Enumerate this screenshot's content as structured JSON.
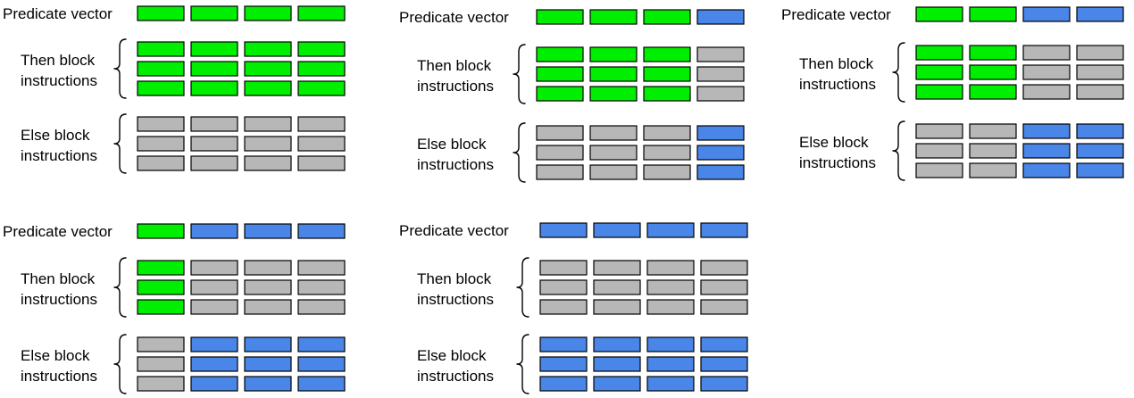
{
  "labels": {
    "predicate": "Predicate vector",
    "then_line1": "Then block",
    "then_line2": "instructions",
    "else_line1": "Else block",
    "else_line2": "instructions"
  },
  "colors": {
    "true": "#00ee00",
    "false": "#4a86e8",
    "inactive": "#b7b7b7"
  },
  "panels": [
    {
      "predicate": [
        1,
        1,
        1,
        1
      ]
    },
    {
      "predicate": [
        1,
        1,
        1,
        0
      ]
    },
    {
      "predicate": [
        1,
        1,
        0,
        0
      ]
    },
    {
      "predicate": [
        1,
        0,
        0,
        0
      ]
    },
    {
      "predicate": [
        0,
        0,
        0,
        0
      ]
    }
  ]
}
